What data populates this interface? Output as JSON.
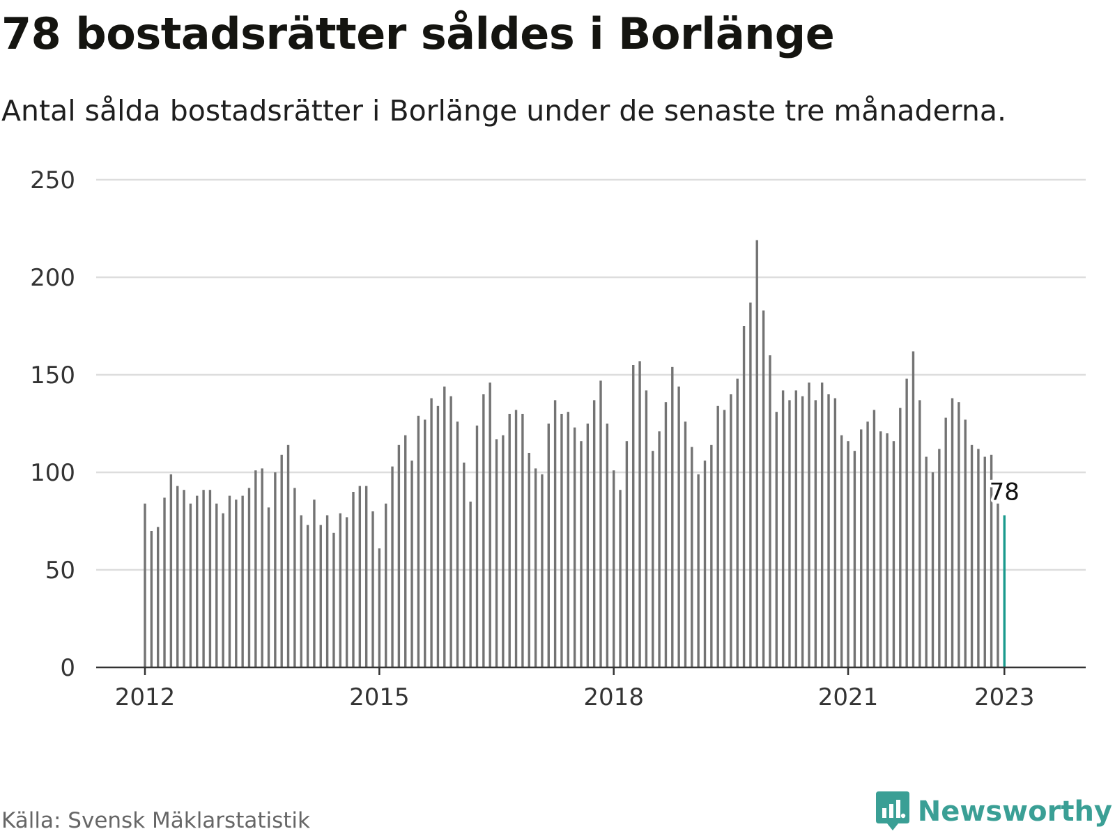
{
  "title": "78 bostadsrätter såldes i Borlänge",
  "subtitle": "Antal sålda bostadsrätter i Borlänge under de senaste tre månaderna.",
  "source": "Källa: Svensk Mäklarstatistik",
  "brand": {
    "name": "Newsworthy",
    "icon": "newsworthy-logo-icon",
    "color": "#3a9f95"
  },
  "colors": {
    "bar": "#737373",
    "highlight": "#1a9a8d",
    "grid": "#dddddd",
    "axis": "#333333"
  },
  "chart_data": {
    "type": "bar",
    "x_start": "2012-01",
    "interval": "month",
    "ylim": [
      0,
      250
    ],
    "y_ticks": [
      0,
      50,
      100,
      150,
      200,
      250
    ],
    "x_ticks": [
      "2012",
      "2015",
      "2018",
      "2021",
      "2023"
    ],
    "grid": true,
    "highlight_last": true,
    "last_value_label": "78",
    "values": [
      84,
      70,
      72,
      87,
      99,
      93,
      91,
      84,
      88,
      91,
      91,
      84,
      79,
      88,
      86,
      88,
      92,
      101,
      102,
      82,
      100,
      109,
      114,
      92,
      78,
      73,
      86,
      73,
      78,
      69,
      79,
      77,
      90,
      93,
      93,
      80,
      61,
      84,
      103,
      114,
      119,
      106,
      129,
      127,
      138,
      134,
      144,
      139,
      126,
      105,
      85,
      124,
      140,
      146,
      117,
      119,
      130,
      132,
      130,
      110,
      102,
      99,
      125,
      137,
      130,
      131,
      123,
      116,
      125,
      137,
      147,
      125,
      101,
      91,
      116,
      155,
      157,
      142,
      111,
      121,
      136,
      154,
      144,
      126,
      113,
      99,
      106,
      114,
      134,
      132,
      140,
      148,
      175,
      187,
      219,
      183,
      160,
      131,
      142,
      137,
      142,
      139,
      146,
      137,
      146,
      140,
      138,
      119,
      116,
      111,
      122,
      126,
      132,
      121,
      120,
      116,
      133,
      148,
      162,
      137,
      108,
      100,
      112,
      128,
      138,
      136,
      127,
      114,
      112,
      108,
      109,
      84,
      78
    ]
  }
}
